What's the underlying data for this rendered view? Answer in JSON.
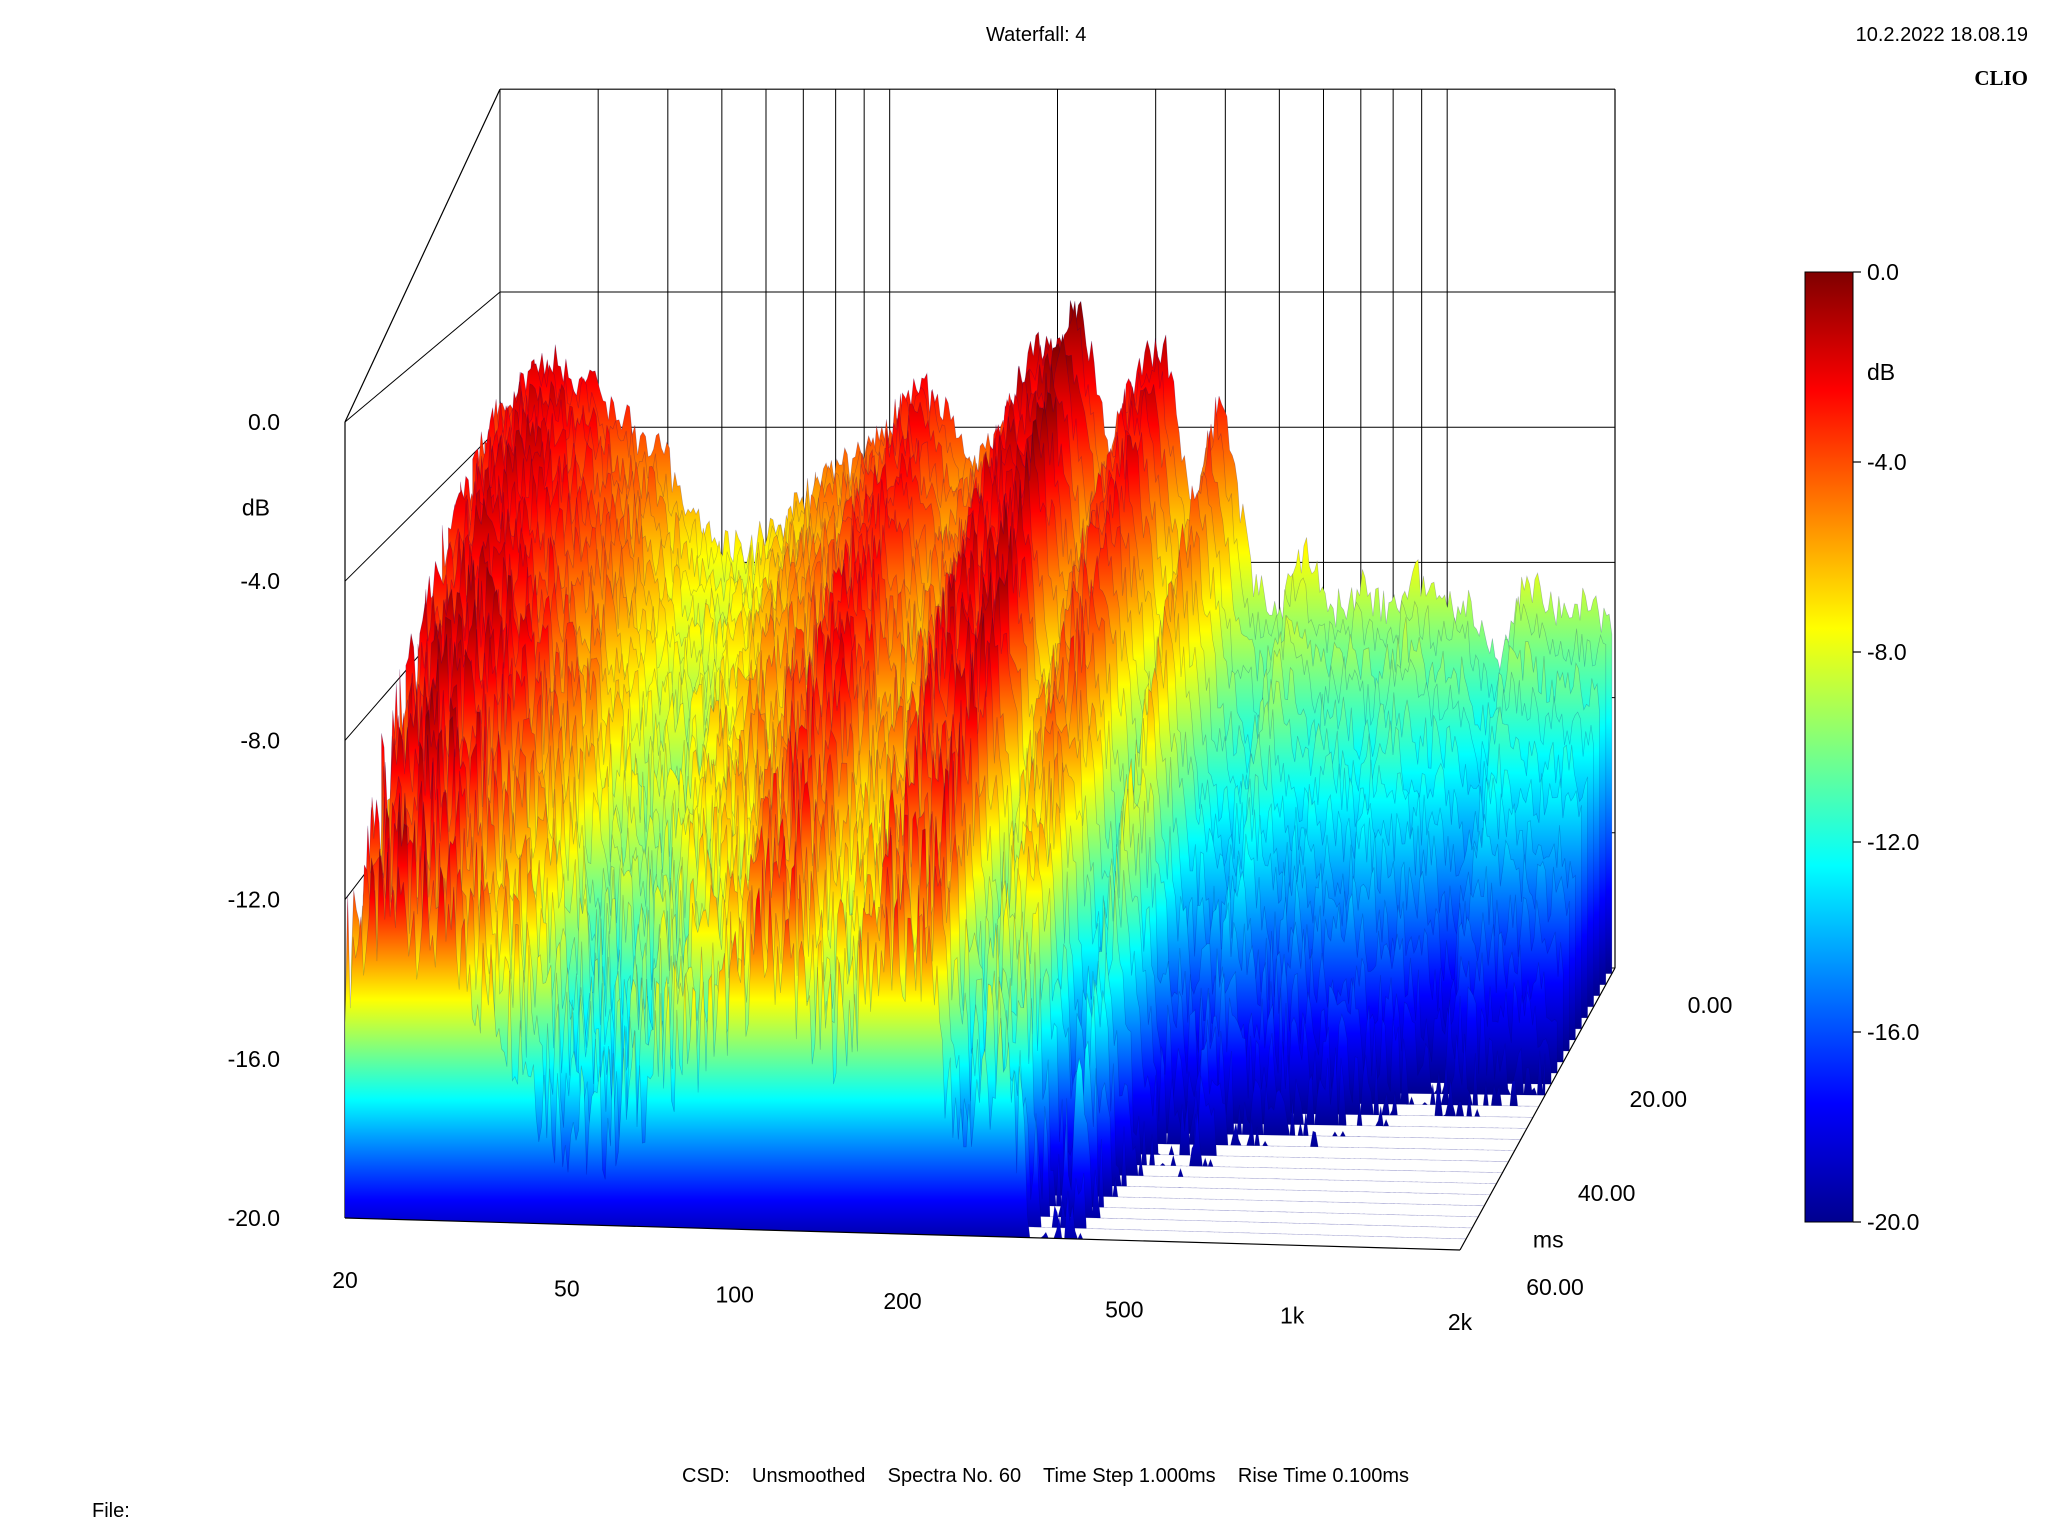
{
  "header": {
    "title": "Waterfall: 4",
    "timestamp": "10.2.2022 18.08.19",
    "brand": "CLIO"
  },
  "footer": {
    "csd_label": "CSD:",
    "smoothing": "Unsmoothed",
    "spectra": "Spectra No. 60",
    "time_step": "Time Step 1.000ms",
    "rise_time": "Rise Time 0.100ms",
    "file_label": "File:"
  },
  "colorbar": {
    "unit": "dB",
    "ticks": [
      "0.0",
      "-4.0",
      "-8.0",
      "-12.0",
      "-16.0",
      "-20.0"
    ],
    "colors": [
      "#7f0000",
      "#ff0000",
      "#ff7f00",
      "#ffff00",
      "#7fff7f",
      "#00ffff",
      "#007fff",
      "#0000ff",
      "#00008f"
    ]
  },
  "chart_data": {
    "type": "waterfall",
    "title": "Waterfall: 4",
    "x": {
      "label": "",
      "scale": "log",
      "range": [
        20,
        2000
      ],
      "ticks": [
        "20",
        "50",
        "100",
        "200",
        "500",
        "1k",
        "2k"
      ],
      "tick_values": [
        20,
        50,
        100,
        200,
        500,
        1000,
        2000
      ]
    },
    "y": {
      "label": "dB",
      "range": [
        -20,
        0
      ],
      "ticks": [
        "0.0",
        "-4.0",
        "-8.0",
        "-12.0",
        "-16.0",
        "-20.0"
      ]
    },
    "z": {
      "label": "ms",
      "range": [
        0,
        60
      ],
      "ticks": [
        "0.00",
        "20.00",
        "40.00",
        "60.00"
      ]
    },
    "front_spectrum": {
      "freq_hz": [
        20,
        22,
        25,
        28,
        32,
        36,
        40,
        45,
        50,
        56,
        63,
        70,
        80,
        90,
        100,
        112,
        125,
        140,
        160,
        180,
        200,
        224,
        250,
        280,
        315,
        355,
        400,
        450,
        500,
        560,
        630,
        710,
        800,
        900,
        1000,
        1120,
        1250,
        1400,
        1600,
        1800,
        2000
      ],
      "level_db": [
        -3.4,
        -2.6,
        -2.0,
        -2.4,
        -3.2,
        -4.2,
        -4.8,
        -6.5,
        -7.3,
        -7.6,
        -6.9,
        -6.2,
        -5.2,
        -4.8,
        -4.0,
        -2.8,
        -3.0,
        -5.0,
        -4.2,
        -1.8,
        -1.5,
        -0.2,
        -4.8,
        -2.2,
        -1.5,
        -6.5,
        -2.8,
        -8.2,
        -9.6,
        -7.5,
        -9.4,
        -8.6,
        -9.4,
        -8.2,
        -9.2,
        -9.1,
        -10.8,
        -8.3,
        -9.2,
        -9.2,
        -9.6
      ]
    },
    "grid": true,
    "legend": "colorbar-right"
  }
}
